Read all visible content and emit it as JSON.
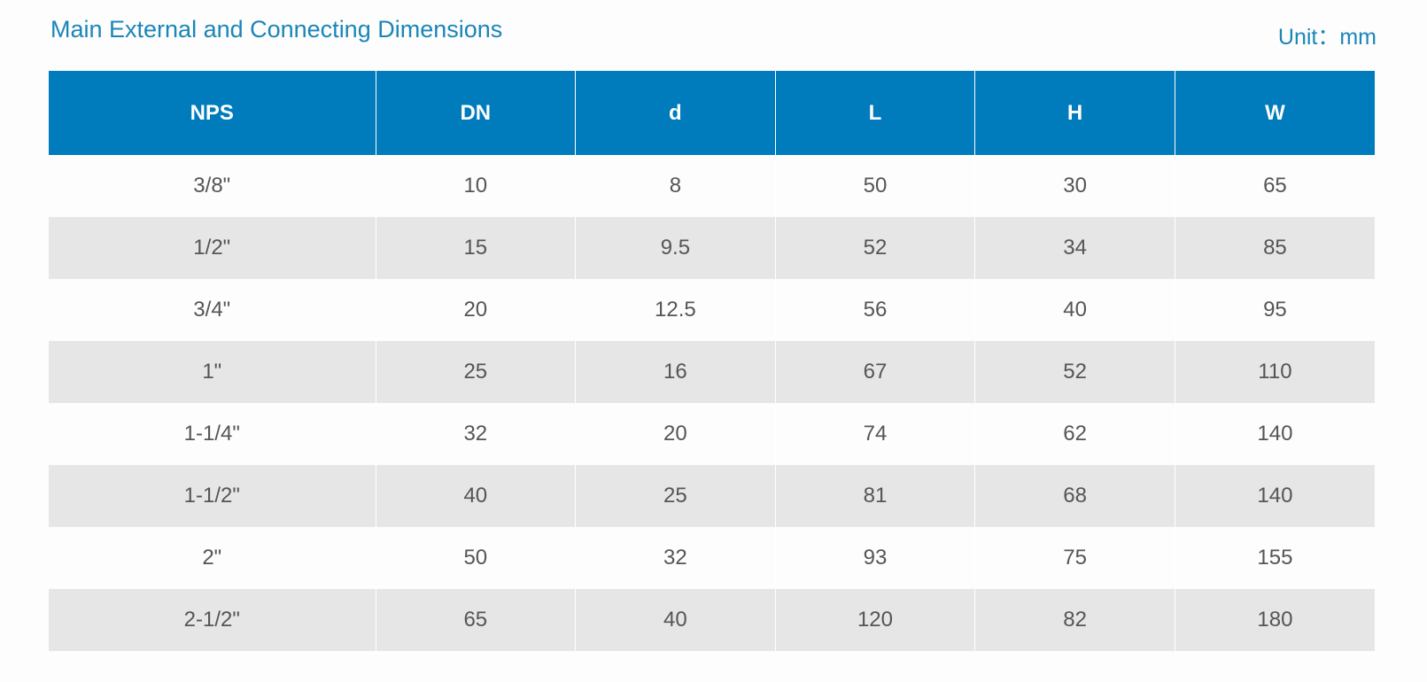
{
  "header": {
    "title": "Main External and Connecting Dimensions",
    "unit": "Unit：mm"
  },
  "table": {
    "columns": [
      "NPS",
      "DN",
      "d",
      "L",
      "H",
      "W"
    ],
    "rows": [
      [
        "3/8\"",
        "10",
        "8",
        "50",
        "30",
        "65"
      ],
      [
        "1/2\"",
        "15",
        "9.5",
        "52",
        "34",
        "85"
      ],
      [
        "3/4\"",
        "20",
        "12.5",
        "56",
        "40",
        "95"
      ],
      [
        "1\"",
        "25",
        "16",
        "67",
        "52",
        "110"
      ],
      [
        "1-1/4\"",
        "32",
        "20",
        "74",
        "62",
        "140"
      ],
      [
        "1-1/2\"",
        "40",
        "25",
        "81",
        "68",
        "140"
      ],
      [
        "2\"",
        "50",
        "32",
        "93",
        "75",
        "155"
      ],
      [
        "2-1/2\"",
        "65",
        "40",
        "120",
        "82",
        "180"
      ]
    ]
  },
  "colors": {
    "header_bg": "#007bbb",
    "title_text": "#1a86b8",
    "row_alt_bg": "#e6e6e6"
  }
}
